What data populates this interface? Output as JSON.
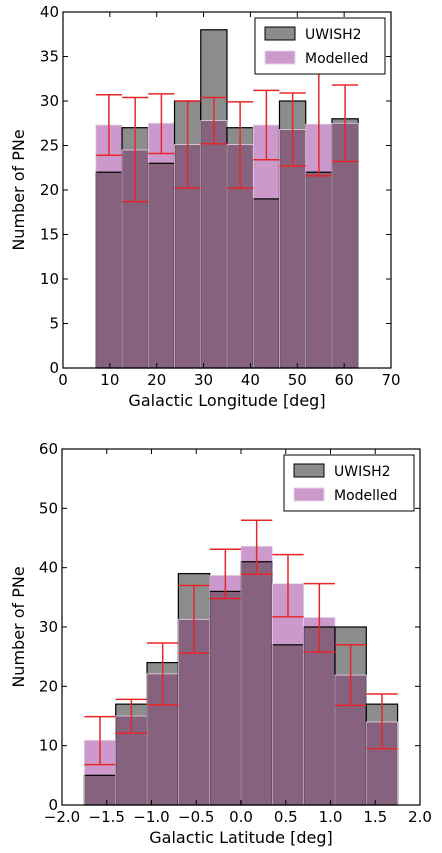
{
  "colors": {
    "observed": "#8c8c8c",
    "modelled": "#cc99cc",
    "overlap": "#86627f",
    "error_bar": "#e8262a"
  },
  "chart_data": [
    {
      "type": "bar",
      "xlabel": "Galactic Longitude [deg]",
      "ylabel": "Number of PNe",
      "xlim": [
        0,
        75
      ],
      "ylim": [
        0,
        40
      ],
      "xticks": [
        "0",
        "10",
        "20",
        "30",
        "40",
        "50",
        "60",
        "70"
      ],
      "yticks": [
        "0",
        "5",
        "10",
        "15",
        "20",
        "25",
        "30",
        "35",
        "40"
      ],
      "legend_position": "top-right",
      "bin_edges": [
        7.5,
        13.5,
        19.5,
        25.5,
        31.5,
        37.5,
        43.5,
        49.5,
        55.5,
        61.5,
        67.5
      ],
      "series": [
        {
          "name": "UWISH2",
          "values": [
            22,
            27,
            23,
            30,
            38,
            27,
            19,
            30,
            22,
            28
          ]
        },
        {
          "name": "Modelled",
          "values": [
            27.3,
            24.5,
            27.5,
            25.1,
            27.8,
            25.1,
            27.3,
            26.8,
            27.4,
            27.5
          ],
          "error_low": [
            23.9,
            18.7,
            24.1,
            20.2,
            25.2,
            20.2,
            23.4,
            22.7,
            21.6,
            23.2
          ],
          "error_high": [
            30.7,
            30.4,
            30.8,
            30.0,
            30.4,
            29.9,
            31.2,
            30.9,
            33.1,
            31.8
          ]
        }
      ]
    },
    {
      "type": "bar",
      "xlabel": "Galactic Latitude [deg]",
      "ylabel": "Number of PNe",
      "xlim": [
        -2.0,
        2.0
      ],
      "ylim": [
        0,
        60
      ],
      "xticks": [
        "−2.0",
        "−1.5",
        "−1.0",
        "−0.5",
        "0.0",
        "0.5",
        "1.0",
        "1.5",
        "2.0"
      ],
      "yticks": [
        "0",
        "10",
        "20",
        "30",
        "40",
        "50",
        "60"
      ],
      "legend_position": "top-right",
      "bin_edges": [
        -1.75,
        -1.4,
        -1.05,
        -0.7,
        -0.35,
        0.0,
        0.35,
        0.7,
        1.05,
        1.4,
        1.75
      ],
      "series": [
        {
          "name": "UWISH2",
          "values": [
            5,
            17,
            24,
            39,
            36,
            41,
            27,
            30,
            30,
            17
          ]
        },
        {
          "name": "Modelled",
          "values": [
            10.9,
            15.0,
            22.1,
            31.3,
            38.7,
            43.6,
            37.3,
            31.6,
            21.9,
            14.0
          ],
          "error_low": [
            6.8,
            12.1,
            16.9,
            25.6,
            34.8,
            38.9,
            31.7,
            25.8,
            16.8,
            9.5
          ],
          "error_high": [
            14.9,
            17.8,
            27.3,
            37.0,
            43.1,
            48.0,
            42.2,
            37.3,
            27.0,
            18.7
          ]
        }
      ]
    }
  ]
}
